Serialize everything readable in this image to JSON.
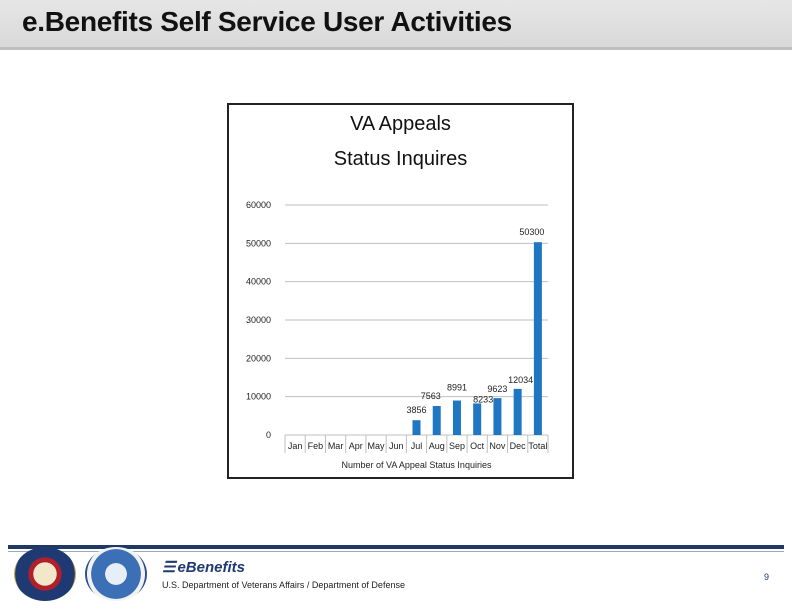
{
  "page": {
    "title": "e.Benefits Self Service User Activities",
    "page_number": "9"
  },
  "footer": {
    "brand": "eBenefits",
    "agency": "U.S. Department of Veterans Affairs / Department of Defense",
    "seal_left_icon": "va-seal-icon",
    "seal_right_icon": "dod-seal-icon"
  },
  "chart_data": {
    "type": "bar",
    "title_line1": "VA Appeals",
    "title_line2": "Status Inquires",
    "xlabel": "Number of VA Appeal Status Inquiries",
    "ylabel": "",
    "ylim": [
      0,
      60000
    ],
    "yticks": [
      0,
      10000,
      20000,
      30000,
      40000,
      50000,
      60000
    ],
    "grid": true,
    "bar_color": "#1f77c4",
    "categories": [
      "Jan",
      "Feb",
      "Mar",
      "Apr",
      "May",
      "Jun",
      "Jul",
      "Aug",
      "Sep",
      "Oct",
      "Nov",
      "Dec",
      "Total"
    ],
    "values": [
      null,
      null,
      null,
      null,
      null,
      null,
      3856,
      7563,
      8991,
      8233,
      9623,
      12034,
      50300
    ],
    "data_labels": [
      "",
      "",
      "",
      "",
      "",
      "",
      "3856",
      "7563",
      "8991",
      "8233",
      "9623",
      "12034",
      "50300"
    ]
  }
}
